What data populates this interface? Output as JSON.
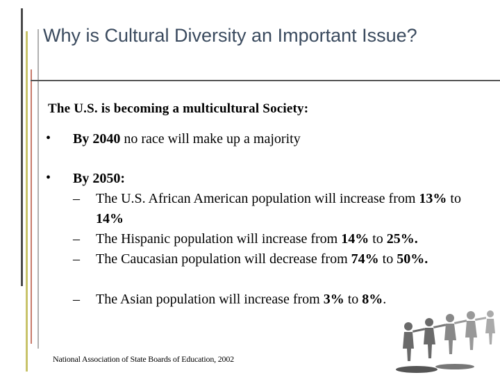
{
  "colors": {
    "title": "#3a4a5e",
    "bar_dark": "#4a4a4a",
    "bar_olive": "#c8c36a",
    "bar_red": "#c77a6a",
    "bar_gray": "#b0b0b0",
    "rule": "#555555"
  },
  "slide": {
    "title": "Why is Cultural Diversity an Important Issue?",
    "subtitle": "The U.S. is becoming  a multicultural Society:",
    "bullet_char": "•",
    "dash_char": "–",
    "bullet1": {
      "bold": "By 2040",
      "rest": " no race will make up a majority"
    },
    "bullet2": {
      "heading": "By 2050:",
      "items": [
        {
          "a": "The U.S. African American population will increase from ",
          "b1": "13%",
          "c": " to ",
          "b2": "14%",
          "d": ""
        },
        {
          "a": "The Hispanic population will increase from ",
          "b1": "14%",
          "c": " to ",
          "b2": "25%.",
          "d": ""
        },
        {
          "a": "The Caucasian population will decrease from ",
          "b1": "74%",
          "c": " to ",
          "b2": "50%.",
          "d": ""
        },
        {
          "a": "The Asian population will increase from ",
          "b1": "3%",
          "c": " to ",
          "b2": "8%",
          "d": "."
        }
      ]
    },
    "citation": "National Association of State Boards of Education, 2002",
    "decoration_icon": "people-chain-icon"
  }
}
